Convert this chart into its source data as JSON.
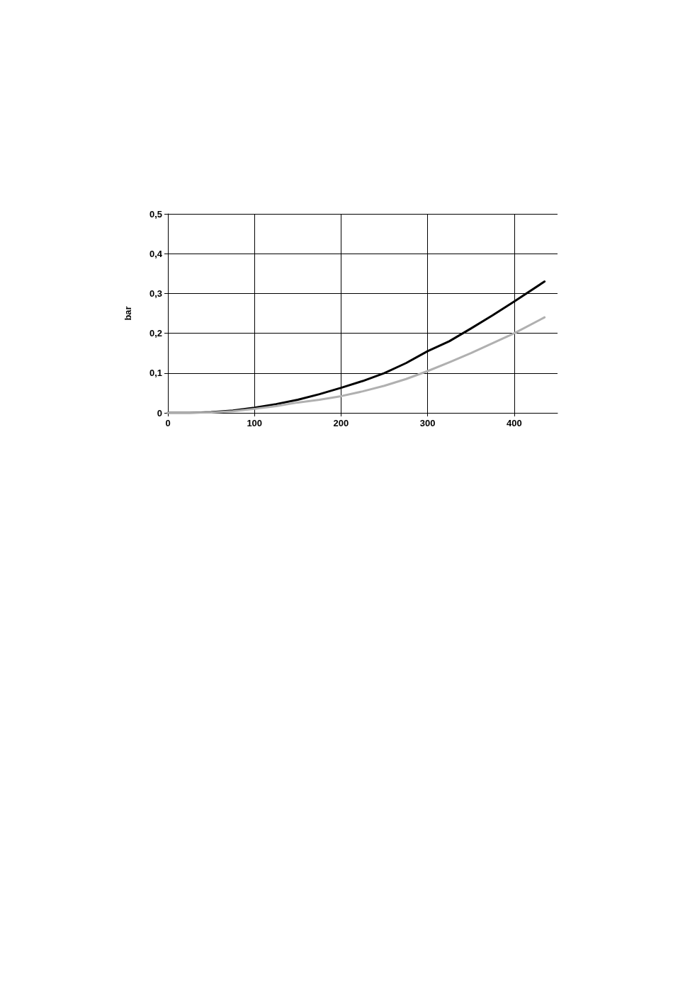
{
  "chart_data": {
    "type": "line",
    "ylabel": "bar",
    "x": [
      0,
      25,
      50,
      75,
      100,
      125,
      150,
      175,
      200,
      225,
      250,
      275,
      300,
      325,
      350,
      375,
      400,
      435
    ],
    "series": [
      {
        "color": "#000000",
        "values": [
          0,
          0,
          0.002,
          0.006,
          0.013,
          0.022,
          0.033,
          0.047,
          0.063,
          0.08,
          0.1,
          0.125,
          0.155,
          0.18,
          0.212,
          0.245,
          0.28,
          0.33
        ]
      },
      {
        "color": "#b0b0b0",
        "values": [
          0,
          0,
          0.001,
          0.004,
          0.01,
          0.017,
          0.026,
          0.033,
          0.042,
          0.054,
          0.068,
          0.085,
          0.105,
          0.127,
          0.15,
          0.175,
          0.2,
          0.24
        ]
      }
    ],
    "xlim": [
      0,
      450
    ],
    "xticks": [
      0,
      100,
      200,
      300,
      400
    ],
    "ylim": [
      0,
      0.5
    ],
    "yticks": [
      {
        "value": 0,
        "label": "0"
      },
      {
        "value": 0.1,
        "label": "0,1"
      },
      {
        "value": 0.2,
        "label": "0,2"
      },
      {
        "value": 0.3,
        "label": "0,3"
      },
      {
        "value": 0.4,
        "label": "0,4"
      },
      {
        "value": 0.5,
        "label": "0,5"
      }
    ],
    "grid": true,
    "marker": "none",
    "line_style": "solid"
  }
}
